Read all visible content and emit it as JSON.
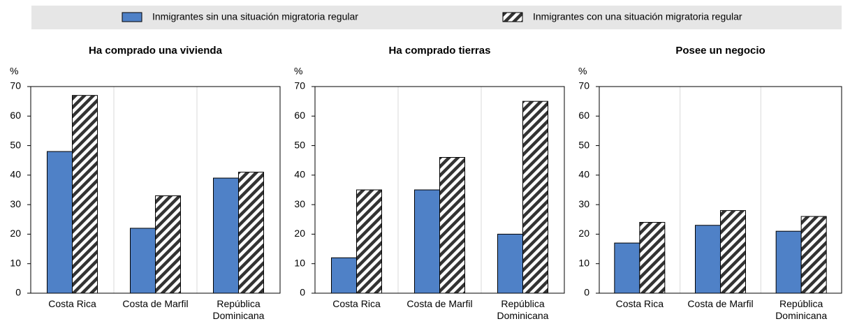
{
  "legend": [
    {
      "name": "Inmigrantes sin una situación migratoria regular",
      "color": "#4f81c7",
      "pattern": "solid"
    },
    {
      "name": "Inmigrantes con una situación migratoria regular",
      "color": "#000000",
      "pattern": "hatch"
    }
  ],
  "chart_data": [
    {
      "type": "bar",
      "title": "Ha comprado una vivienda",
      "y_label": "%",
      "categories": [
        "Costa Rica",
        "Costa de Marfil",
        "República Dominicana"
      ],
      "series": [
        {
          "values": [
            48,
            22,
            39
          ]
        },
        {
          "values": [
            67,
            33,
            41
          ]
        }
      ],
      "ylim": [
        0,
        70
      ],
      "yticks": [
        0,
        10,
        20,
        30,
        40,
        50,
        60,
        70
      ]
    },
    {
      "type": "bar",
      "title": "Ha comprado tierras",
      "y_label": "%",
      "categories": [
        "Costa Rica",
        "Costa de Marfil",
        "República Dominicana"
      ],
      "series": [
        {
          "values": [
            12,
            35,
            20
          ]
        },
        {
          "values": [
            35,
            46,
            65
          ]
        }
      ],
      "ylim": [
        0,
        70
      ],
      "yticks": [
        0,
        10,
        20,
        30,
        40,
        50,
        60,
        70
      ]
    },
    {
      "type": "bar",
      "title": "Posee un negocio",
      "y_label": "%",
      "categories": [
        "Costa Rica",
        "Costa de Marfil",
        "República Dominicana"
      ],
      "series": [
        {
          "values": [
            17,
            23,
            21
          ]
        },
        {
          "values": [
            24,
            28,
            26
          ]
        }
      ],
      "ylim": [
        0,
        70
      ],
      "yticks": [
        0,
        10,
        20,
        30,
        40,
        50,
        60,
        70
      ]
    }
  ]
}
